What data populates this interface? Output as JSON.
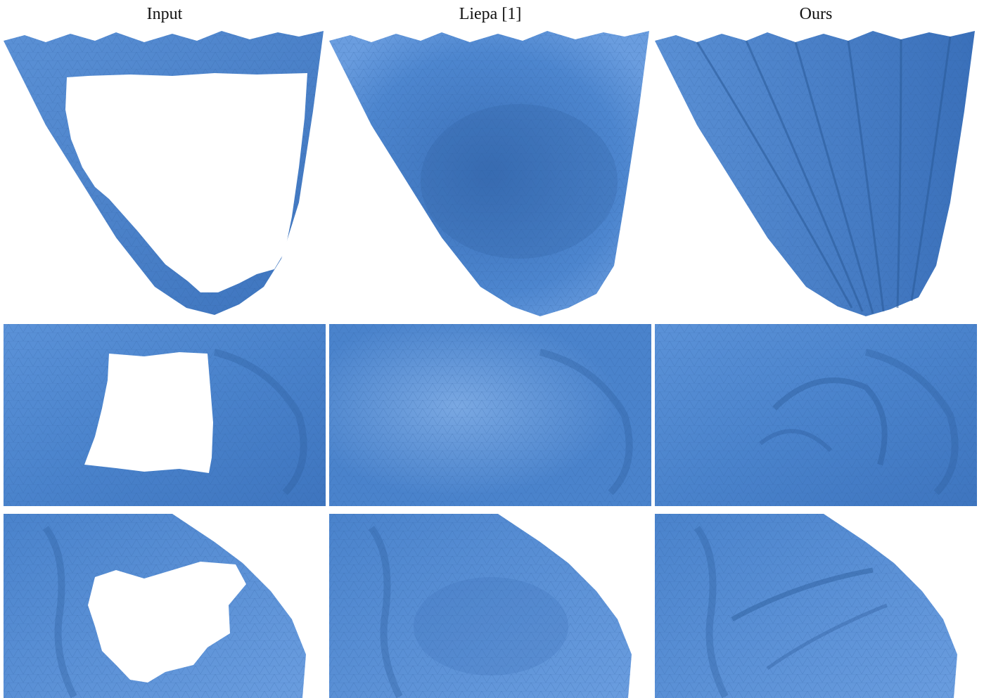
{
  "columns": {
    "input": "Input",
    "liepa": "Liepa [1]",
    "ours": "Ours"
  },
  "colors": {
    "mesh_blue": "#4a83cc",
    "mesh_dark": "#2f5f9e",
    "mesh_light": "#7aa8e2",
    "hole": "#ffffff"
  }
}
